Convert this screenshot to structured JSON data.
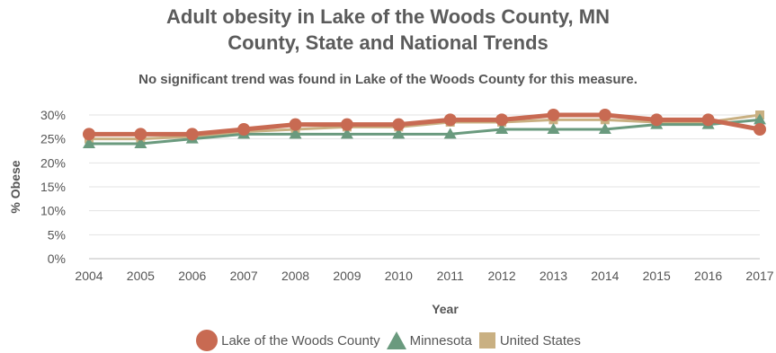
{
  "header": {
    "title_line1": "Adult obesity in Lake of the Woods County, MN",
    "title_line2": "County, State and National Trends",
    "subtitle": "No significant trend was found in Lake of the Woods County for this measure."
  },
  "chart_data": {
    "type": "line",
    "title": "Adult obesity in Lake of the Woods County, MN County, State and National Trends",
    "subtitle": "No significant trend was found in Lake of the Woods County for this measure.",
    "xlabel": "Year",
    "ylabel": "% Obese",
    "x": [
      "2004",
      "2005",
      "2006",
      "2007",
      "2008",
      "2009",
      "2010",
      "2011",
      "2012",
      "2013",
      "2014",
      "2015",
      "2016",
      "2017"
    ],
    "yticks": [
      "0%",
      "5%",
      "10%",
      "15%",
      "20%",
      "25%",
      "30%"
    ],
    "ylim": [
      0,
      30
    ],
    "grid": "horizontal",
    "legend": "bottom",
    "series": [
      {
        "name": "United States",
        "color": "#c9b082",
        "marker": "square",
        "values": [
          25,
          25,
          25.5,
          26.5,
          27,
          27.5,
          27.5,
          28.5,
          28.5,
          29,
          29,
          28.5,
          28.5,
          30
        ]
      },
      {
        "name": "Minnesota",
        "color": "#6a9a7e",
        "marker": "triangle",
        "values": [
          24,
          24,
          25,
          26,
          26,
          26,
          26,
          26,
          27,
          27,
          27,
          28,
          28,
          29
        ]
      },
      {
        "name": "Lake of the Woods County",
        "color": "#c86a52",
        "marker": "circle",
        "values": [
          26,
          26,
          26,
          27,
          28,
          28,
          28,
          29,
          29,
          30,
          30,
          29,
          29,
          27
        ]
      }
    ]
  },
  "legend": {
    "items": [
      {
        "label": "Lake of the Woods County"
      },
      {
        "label": "Minnesota"
      },
      {
        "label": "United States"
      }
    ]
  }
}
